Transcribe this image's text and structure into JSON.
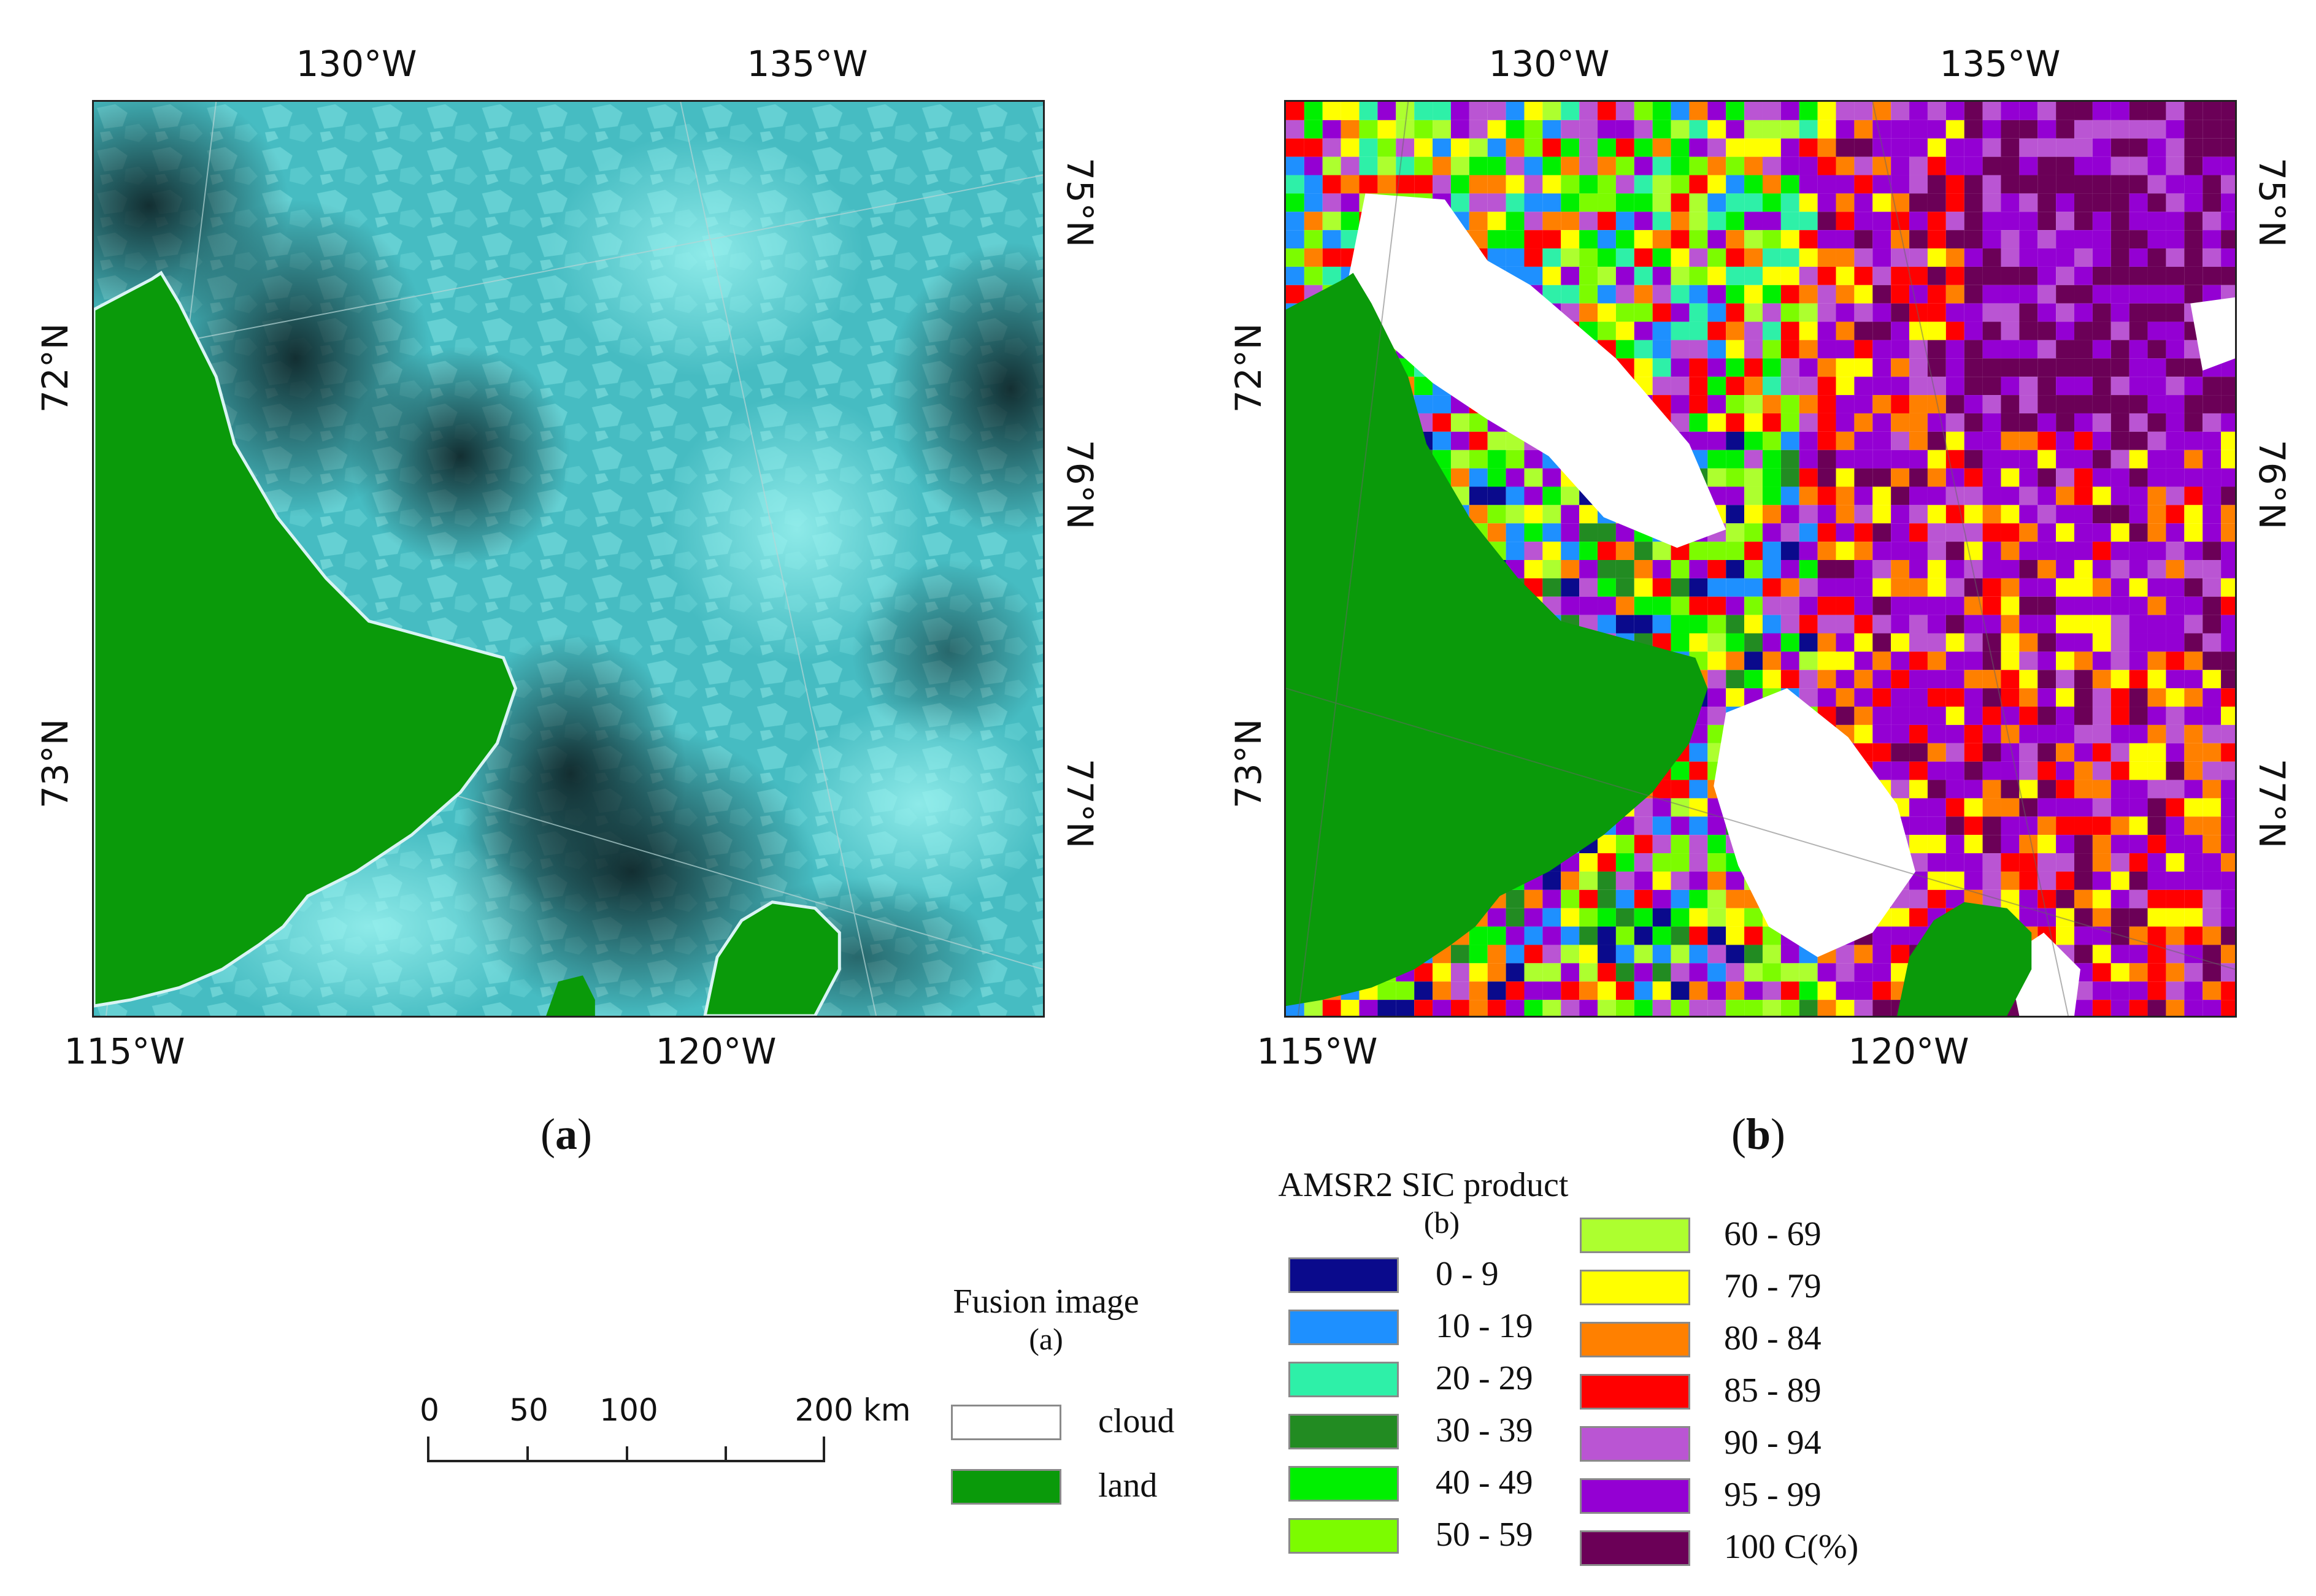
{
  "panels": {
    "a": {
      "label": "a",
      "top_ticks": [
        "130°W",
        "135°W"
      ],
      "bottom_ticks": [
        "115°W",
        "120°W"
      ],
      "left_ticks": [
        "72°N",
        "73°N"
      ],
      "right_ticks": [
        "75°N",
        "76°N",
        "77°N"
      ]
    },
    "b": {
      "label": "b",
      "top_ticks": [
        "130°W",
        "135°W"
      ],
      "bottom_ticks": [
        "115°W",
        "120°W"
      ],
      "left_ticks": [
        "72°N",
        "73°N"
      ],
      "right_ticks": [
        "75°N",
        "76°N",
        "77°N"
      ]
    }
  },
  "scale_bar": {
    "labels": [
      "0",
      "50",
      "100",
      "200 km"
    ]
  },
  "fusion_legend": {
    "title": "Fusion image",
    "subtitle": "(a)",
    "items": [
      {
        "label": "cloud",
        "color": "#ffffff"
      },
      {
        "label": "land",
        "color": "#0a9a0a"
      }
    ]
  },
  "sic_legend": {
    "title": "AMSR2 SIC product",
    "subtitle": "(b)",
    "items": [
      {
        "label": "0 - 9",
        "color": "#0a0a8c"
      },
      {
        "label": "10 - 19",
        "color": "#1e90ff"
      },
      {
        "label": "20 - 29",
        "color": "#2ef0a8"
      },
      {
        "label": "30 - 39",
        "color": "#228b22"
      },
      {
        "label": "40 - 49",
        "color": "#00f000"
      },
      {
        "label": "50 - 59",
        "color": "#7cfc00"
      },
      {
        "label": "60 - 69",
        "color": "#adff2f"
      },
      {
        "label": "70 - 79",
        "color": "#ffff00"
      },
      {
        "label": "80 - 84",
        "color": "#ff8000"
      },
      {
        "label": "85 - 89",
        "color": "#ff0000"
      },
      {
        "label": "90 - 94",
        "color": "#ba55d3"
      },
      {
        "label": "95 - 99",
        "color": "#9400d3"
      },
      {
        "label": "100  C(%)",
        "color": "#6b0057"
      }
    ]
  },
  "colors": {
    "land": "#0a9a0a",
    "ice_light": "#7fe6e6",
    "ice_mid": "#48c3c8",
    "water_dark": "#1b3a3e"
  }
}
